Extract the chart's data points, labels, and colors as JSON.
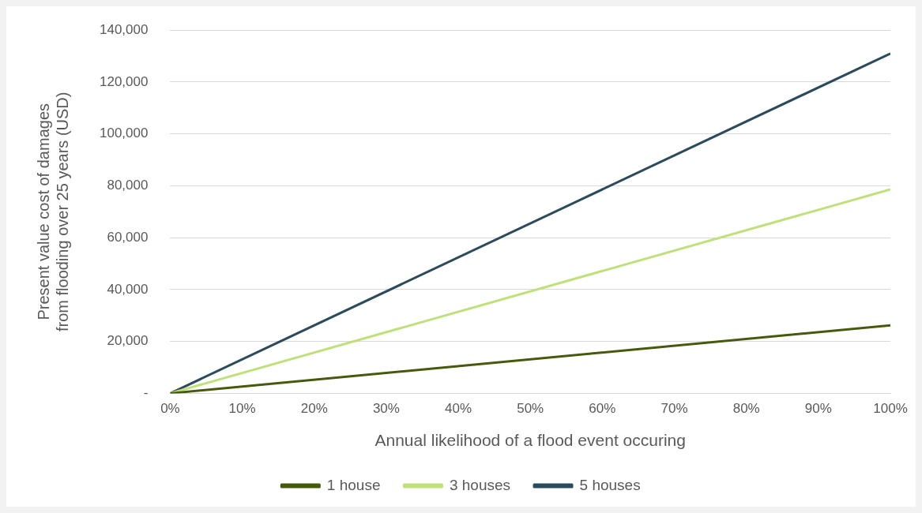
{
  "chart_data": {
    "type": "line",
    "xlabel": "Annual likelihood of a flood event occuring",
    "ylabel": "Present value cost of damages from flooding over 25 years (USD)",
    "x": [
      0,
      100
    ],
    "series": [
      {
        "name": "1 house",
        "color": "#465a0e",
        "values": [
          0,
          26200
        ]
      },
      {
        "name": "3 houses",
        "color": "#bfe07a",
        "values": [
          0,
          78600
        ]
      },
      {
        "name": "5 houses",
        "color": "#2b4a5c",
        "values": [
          0,
          131000
        ]
      }
    ],
    "xlim": [
      0,
      100
    ],
    "xticks": [
      {
        "value": 0,
        "label": "0%"
      },
      {
        "value": 10,
        "label": "10%"
      },
      {
        "value": 20,
        "label": "20%"
      },
      {
        "value": 30,
        "label": "30%"
      },
      {
        "value": 40,
        "label": "40%"
      },
      {
        "value": 50,
        "label": "50%"
      },
      {
        "value": 60,
        "label": "60%"
      },
      {
        "value": 70,
        "label": "70%"
      },
      {
        "value": 80,
        "label": "80%"
      },
      {
        "value": 90,
        "label": "90%"
      },
      {
        "value": 100,
        "label": "100%"
      }
    ],
    "ylim": [
      0,
      140000
    ],
    "yticks": [
      {
        "value": 0,
        "label": "-"
      },
      {
        "value": 20000,
        "label": "20,000"
      },
      {
        "value": 40000,
        "label": "40,000"
      },
      {
        "value": 60000,
        "label": "60,000"
      },
      {
        "value": 80000,
        "label": "80,000"
      },
      {
        "value": 100000,
        "label": "100,000"
      },
      {
        "value": 120000,
        "label": "120,000"
      },
      {
        "value": 140000,
        "label": "140,000"
      }
    ],
    "grid": "y",
    "legend": "bottom",
    "marker": "none",
    "line_style": "solid"
  }
}
